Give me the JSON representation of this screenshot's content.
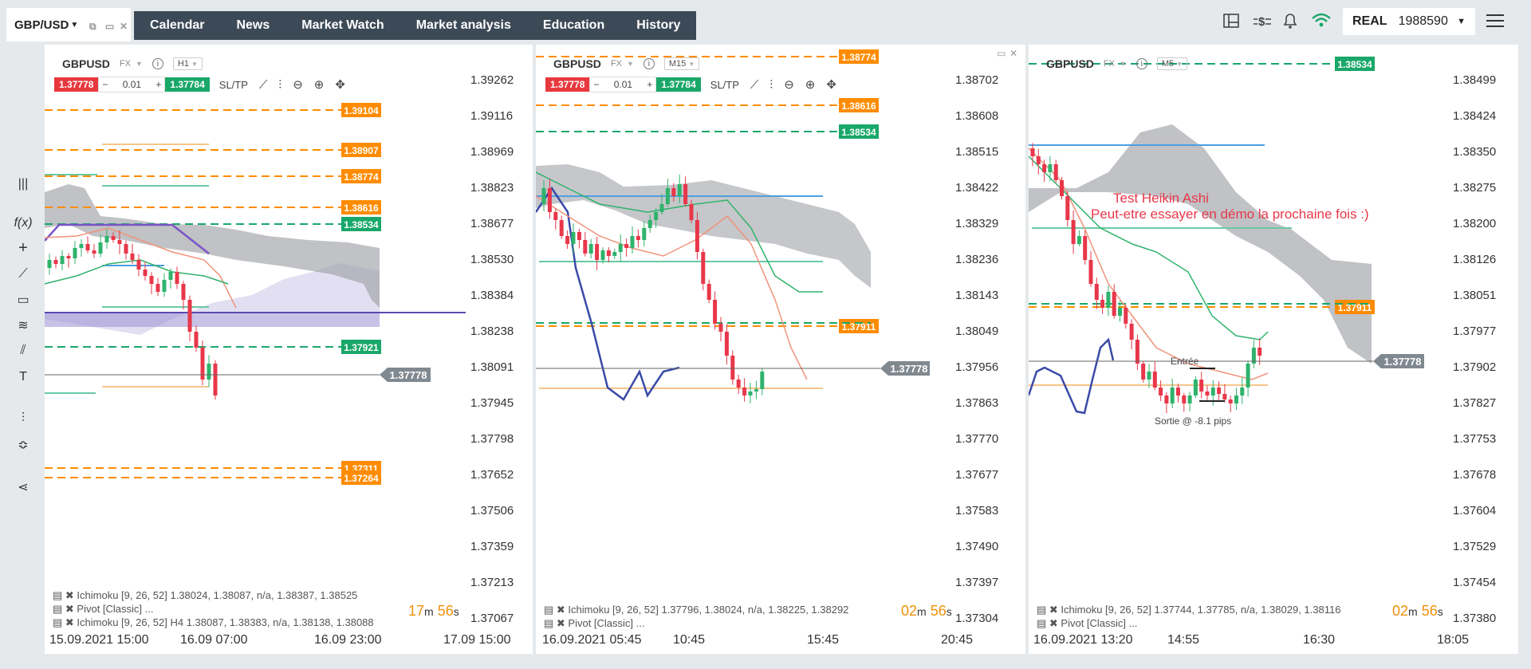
{
  "colors": {
    "up": "#2fb36c",
    "down": "#e8374a",
    "orange": "#ff8c00",
    "green": "#1aa76a",
    "ichimoku_cloud": "#9ea2a6",
    "purple": "#8577c9",
    "blue": "#4d9fe0",
    "navy": "#3a4aa8",
    "teal": "#6ac9a3",
    "salmon": "#f0937a",
    "nav_bg": "#3c4a57"
  },
  "symbol_tab": {
    "label": "GBP/USD"
  },
  "nav": [
    "Calendar",
    "News",
    "Market Watch",
    "Market analysis",
    "Education",
    "History"
  ],
  "account": {
    "mode": "REAL",
    "number": "1988590"
  },
  "icons": [
    "layout-icon",
    "dollar-exchange-icon",
    "bell-icon",
    "wifi-icon",
    "menu-icon"
  ],
  "left_tools": [
    "bars-icon",
    "fx-icon",
    "crosshair-icon",
    "line-icon",
    "rectangle-icon",
    "fibonacci-icon",
    "channel-icon",
    "text-icon",
    "indicator-icon",
    "layers-icon",
    "share-icon"
  ],
  "panels": [
    {
      "symbol": "GBPUSD",
      "market": "FX",
      "timeframe": "H1",
      "sell_price": "1.37778",
      "lot": "0.01",
      "buy_price": "1.37784",
      "sltp": "SL/TP",
      "price_axis": [
        "1.39262",
        "1.39116",
        "1.38969",
        "1.38823",
        "1.38677",
        "1.38530",
        "1.38384",
        "1.38238",
        "1.38091",
        "1.37945",
        "1.37798",
        "1.37652",
        "1.37506",
        "1.37359",
        "1.37213",
        "1.37067"
      ],
      "current": "1.37778",
      "level_tags": [
        {
          "value": "1.39104",
          "color": "orange"
        },
        {
          "value": "1.38907",
          "color": "orange"
        },
        {
          "value": "1.38774",
          "color": "orange"
        },
        {
          "value": "1.38616",
          "color": "orange"
        },
        {
          "value": "1.38534",
          "color": "green"
        },
        {
          "value": "1.37921",
          "color": "green"
        },
        {
          "value": "1.37311",
          "color": "orange"
        },
        {
          "value": "1.37264",
          "color": "orange"
        }
      ],
      "studies": [
        "Ichimoku [9, 26, 52] 1.38024, 1.38087, n/a, 1.38387, 1.38525",
        "Pivot [Classic] ...",
        "Ichimoku [9, 26, 52] H4 1.38087, 1.38383, n/a, 1.38138, 1.38088"
      ],
      "timer": {
        "value_a": "17",
        "unit_a": "m",
        "value_b": "56",
        "unit_b": "s"
      },
      "time_axis": [
        "15.09.2021 15:00",
        "16.09 07:00",
        "16.09 23:00",
        "17.09 15:00"
      ]
    },
    {
      "symbol": "GBPUSD",
      "market": "FX",
      "timeframe": "M15",
      "sell_price": "1.37778",
      "lot": "0.01",
      "buy_price": "1.37784",
      "sltp": "SL/TP",
      "price_axis": [
        "1.38702",
        "1.38608",
        "1.38515",
        "1.38422",
        "1.38329",
        "1.38236",
        "1.38143",
        "1.38049",
        "1.37956",
        "1.37863",
        "1.37770",
        "1.37677",
        "1.37583",
        "1.37490",
        "1.37397",
        "1.37304"
      ],
      "current": "1.37778",
      "level_tags": [
        {
          "value": "1.38774",
          "color": "orange"
        },
        {
          "value": "1.38616",
          "color": "orange"
        },
        {
          "value": "1.38534",
          "color": "green"
        },
        {
          "value": "1.37911",
          "color": "orange"
        }
      ],
      "studies": [
        "Ichimoku [9, 26, 52] 1.37796, 1.38024, n/a, 1.38225, 1.38292",
        "Pivot [Classic] ..."
      ],
      "timer": {
        "value_a": "02",
        "unit_a": "m",
        "value_b": "56",
        "unit_b": "s"
      },
      "time_axis": [
        "16.09.2021 05:45",
        "10:45",
        "15:45",
        "20:45"
      ]
    },
    {
      "symbol": "GBPUSD",
      "market": "FX",
      "timeframe": "M5",
      "price_axis": [
        "1.38499",
        "1.38424",
        "1.38350",
        "1.38275",
        "1.38200",
        "1.38126",
        "1.38051",
        "1.37977",
        "1.37902",
        "1.37827",
        "1.37753",
        "1.37678",
        "1.37604",
        "1.37529",
        "1.37454",
        "1.37380"
      ],
      "current": "1.37778",
      "level_tags": [
        {
          "value": "1.38534",
          "color": "green"
        },
        {
          "value": "1.37911",
          "color": "orange"
        }
      ],
      "annotation_title": "Test Heikin Ashi",
      "annotation_text": "Peut-etre essayer en démo la prochaine fois :)",
      "entry_label": "Entrée",
      "exit_label": "Sortie @ -8.1 pips",
      "studies": [
        "Ichimoku [9, 26, 52] 1.37744, 1.37785, n/a, 1.38029, 1.38116",
        "Pivot [Classic] ..."
      ],
      "timer": {
        "value_a": "02",
        "unit_a": "m",
        "value_b": "56",
        "unit_b": "s"
      },
      "time_axis": [
        "16.09.2021 13:20",
        "14:55",
        "16:30",
        "18:05"
      ]
    }
  ]
}
